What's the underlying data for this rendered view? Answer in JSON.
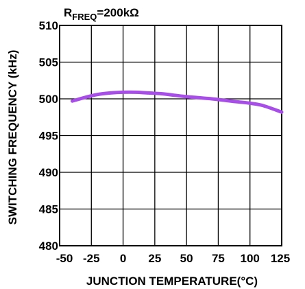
{
  "chart_data": {
    "type": "line",
    "title": "",
    "annotation": {
      "prefix": "R",
      "subscript": "FREQ",
      "suffix": "=200kΩ"
    },
    "xlabel": "JUNCTION TEMPERATURE(°C)",
    "ylabel": "SWITCHING FREQUENCY (kHz)",
    "xlim": [
      -50,
      125
    ],
    "ylim": [
      480,
      510
    ],
    "xticks": [
      -50,
      -25,
      0,
      25,
      50,
      75,
      100,
      125
    ],
    "yticks": [
      480,
      485,
      490,
      495,
      500,
      505,
      510
    ],
    "grid": true,
    "series": [
      {
        "color": "#a84ee8",
        "x": [
          -40,
          -30,
          -20,
          -10,
          0,
          10,
          20,
          30,
          40,
          50,
          60,
          70,
          80,
          90,
          100,
          110,
          125
        ],
        "y": [
          499.7,
          500.2,
          500.6,
          500.8,
          500.9,
          500.9,
          500.8,
          500.7,
          500.5,
          500.3,
          500.15,
          500.0,
          499.8,
          499.6,
          499.4,
          499.1,
          498.2
        ]
      }
    ]
  }
}
